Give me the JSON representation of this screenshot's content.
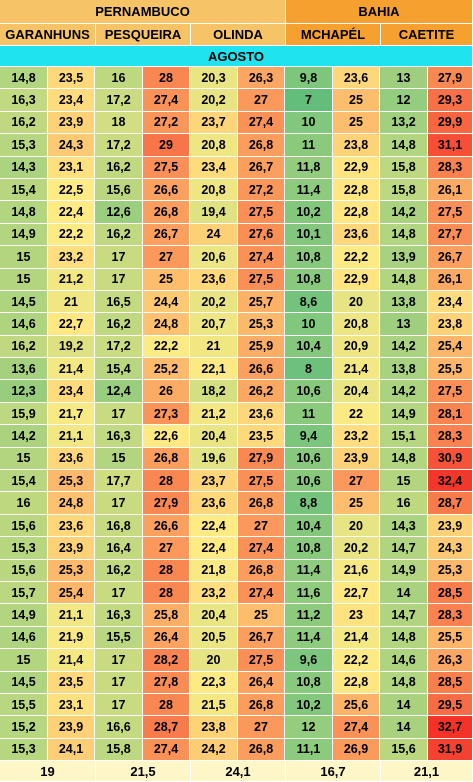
{
  "states": [
    {
      "name": "PERNAMBUCO",
      "color": "#f6c466"
    },
    {
      "name": "BAHIA",
      "color": "#f5a02f"
    }
  ],
  "cities": [
    "GARANHUNS",
    "PESQUEIRA",
    "OLINDA",
    "MCHAPÉL",
    "CAETITE"
  ],
  "month": "AGOSTO",
  "rows": [
    [
      "14,8",
      "23,5",
      "16",
      "28",
      "20,3",
      "26,3",
      "9,8",
      "23,6",
      "13",
      "27,9"
    ],
    [
      "16,3",
      "23,4",
      "17,2",
      "27,4",
      "20,2",
      "27",
      "7",
      "25",
      "12",
      "29,3"
    ],
    [
      "16,2",
      "23,9",
      "18",
      "27,2",
      "23,7",
      "27,4",
      "10",
      "25",
      "13,2",
      "29,9"
    ],
    [
      "15,3",
      "24,3",
      "17,2",
      "29",
      "20,8",
      "26,8",
      "11",
      "23,8",
      "14,8",
      "31,1"
    ],
    [
      "14,3",
      "23,1",
      "16,2",
      "27,5",
      "23,4",
      "26,7",
      "11,8",
      "22,9",
      "15,8",
      "28,3"
    ],
    [
      "15,4",
      "22,5",
      "15,6",
      "26,6",
      "20,8",
      "27,2",
      "11,4",
      "22,8",
      "15,8",
      "26,1"
    ],
    [
      "14,8",
      "22,4",
      "12,6",
      "26,8",
      "19,4",
      "27,5",
      "10,2",
      "22,8",
      "14,2",
      "27,5"
    ],
    [
      "14,9",
      "22,2",
      "16,2",
      "26,7",
      "24",
      "27,6",
      "10,1",
      "23,6",
      "14,8",
      "27,7"
    ],
    [
      "15",
      "23,2",
      "17",
      "27",
      "20,6",
      "27,4",
      "10,8",
      "22,2",
      "13,9",
      "26,7"
    ],
    [
      "15",
      "21,2",
      "17",
      "25",
      "23,6",
      "27,5",
      "10,8",
      "22,9",
      "14,8",
      "26,1"
    ],
    [
      "14,5",
      "21",
      "16,5",
      "24,4",
      "20,2",
      "25,7",
      "8,6",
      "20",
      "13,8",
      "23,4"
    ],
    [
      "14,6",
      "22,7",
      "16,2",
      "24,8",
      "20,7",
      "25,3",
      "10",
      "20,8",
      "13",
      "23,8"
    ],
    [
      "16,2",
      "19,2",
      "17,2",
      "22,2",
      "21",
      "25,9",
      "10,4",
      "20,9",
      "14,2",
      "25,4"
    ],
    [
      "13,6",
      "21,4",
      "15,4",
      "25,2",
      "22,1",
      "26,6",
      "8",
      "21,4",
      "13,8",
      "25,5"
    ],
    [
      "12,3",
      "23,4",
      "12,4",
      "26",
      "18,2",
      "26,2",
      "10,6",
      "20,4",
      "14,2",
      "27,5"
    ],
    [
      "15,9",
      "21,7",
      "17",
      "27,3",
      "21,2",
      "23,6",
      "11",
      "22",
      "14,9",
      "28,1"
    ],
    [
      "14,2",
      "21,1",
      "16,3",
      "22,6",
      "20,4",
      "23,5",
      "9,4",
      "23,2",
      "15,1",
      "28,3"
    ],
    [
      "15",
      "23,6",
      "15",
      "26,8",
      "19,6",
      "27,9",
      "10,6",
      "23,9",
      "14,8",
      "30,9"
    ],
    [
      "15,4",
      "25,3",
      "17,7",
      "28",
      "23,7",
      "27,5",
      "10,6",
      "27",
      "15",
      "32,4"
    ],
    [
      "16",
      "24,8",
      "17",
      "27,9",
      "23,6",
      "26,8",
      "8,8",
      "25",
      "16",
      "28,7"
    ],
    [
      "15,6",
      "23,6",
      "16,8",
      "26,6",
      "22,4",
      "27",
      "10,4",
      "20",
      "14,3",
      "23,9"
    ],
    [
      "15,3",
      "23,9",
      "16,4",
      "27",
      "22,4",
      "27,4",
      "10,8",
      "20,2",
      "14,7",
      "24,3"
    ],
    [
      "15,6",
      "25,3",
      "16,2",
      "28",
      "21,8",
      "26,8",
      "11,4",
      "21,6",
      "14,9",
      "25,3"
    ],
    [
      "15,7",
      "25,4",
      "17",
      "28",
      "23,2",
      "27,4",
      "11,6",
      "22,7",
      "14",
      "28,5"
    ],
    [
      "14,9",
      "21,1",
      "16,3",
      "25,8",
      "20,4",
      "25",
      "11,2",
      "23",
      "14,7",
      "28,3"
    ],
    [
      "14,6",
      "21,9",
      "15,5",
      "26,4",
      "20,5",
      "26,7",
      "11,4",
      "21,4",
      "14,8",
      "25,5"
    ],
    [
      "15",
      "21,4",
      "17",
      "28,2",
      "20",
      "27,5",
      "9,6",
      "22,2",
      "14,6",
      "26,3"
    ],
    [
      "14,5",
      "23,5",
      "17",
      "27,8",
      "22,3",
      "26,4",
      "10,8",
      "22,8",
      "14,8",
      "28,5"
    ],
    [
      "15,5",
      "23,1",
      "17",
      "28",
      "21,5",
      "26,8",
      "10,2",
      "25,6",
      "14",
      "29,5"
    ],
    [
      "15,2",
      "23,9",
      "16,6",
      "28,7",
      "23,8",
      "27",
      "12",
      "27,4",
      "14",
      "32,7"
    ],
    [
      "15,3",
      "24,1",
      "15,8",
      "27,4",
      "24,2",
      "26,8",
      "11,1",
      "26,9",
      "15,6",
      "31,9"
    ]
  ],
  "averages": [
    "19",
    "21,5",
    "24,1",
    "16,7",
    "21,1"
  ]
}
